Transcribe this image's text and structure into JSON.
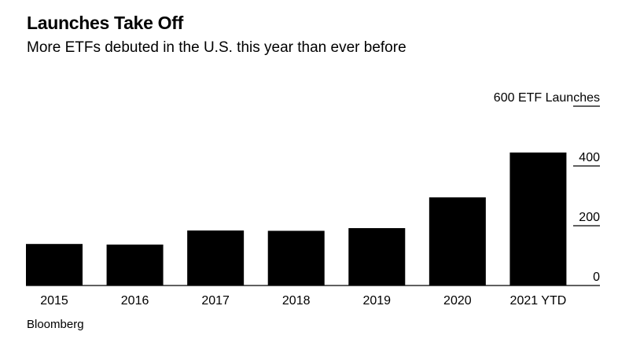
{
  "title": "Launches Take Off",
  "subtitle": "More ETFs debuted in the U.S. this year than ever before",
  "source": "Bloomberg",
  "chart_data": {
    "type": "bar",
    "title": "Launches Take Off",
    "subtitle": "More ETFs debuted in the U.S. this year than ever before",
    "categories": [
      "2015",
      "2016",
      "2017",
      "2018",
      "2019",
      "2020",
      "2021 YTD"
    ],
    "values": [
      139,
      137,
      184,
      183,
      192,
      295,
      445
    ],
    "xlabel": "",
    "ylabel": "ETF Launches",
    "ylim": [
      0,
      600
    ],
    "yticks": [
      0,
      200,
      400,
      600
    ],
    "ytick_labels": [
      "0",
      "200",
      "400",
      "600 ETF Launches"
    ],
    "y_axis_position": "right",
    "grid": false,
    "bar_color": "#000000",
    "source": "Bloomberg"
  }
}
